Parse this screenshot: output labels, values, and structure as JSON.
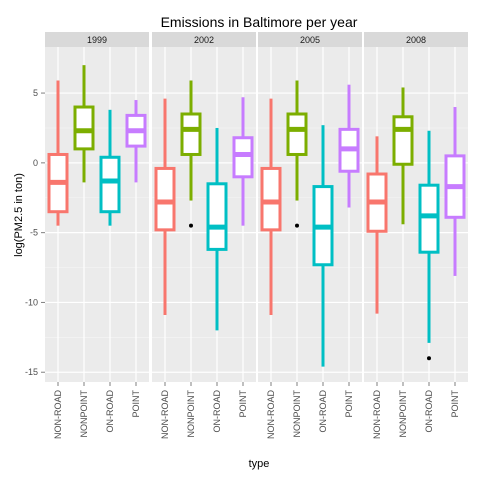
{
  "chart_data": {
    "type": "box",
    "title": "Emissions in Baltimore per year",
    "xlabel": "type",
    "ylabel": "log(PM2.5 in ton)",
    "ylim": [
      -15.7,
      8.3
    ],
    "yticks": [
      -15,
      -10,
      -5,
      0,
      5
    ],
    "categories": [
      "NON-ROAD",
      "NONPOINT",
      "ON-ROAD",
      "POINT"
    ],
    "colors": {
      "NON-ROAD": "#F8766D",
      "NONPOINT": "#7CAE00",
      "ON-ROAD": "#00BFC4",
      "POINT": "#C77CFF"
    },
    "panels": [
      {
        "label": "1999",
        "boxes": [
          {
            "type": "NON-ROAD",
            "min": -4.5,
            "q1": -3.5,
            "median": -1.4,
            "q3": 0.6,
            "max": 5.9,
            "outliers": []
          },
          {
            "type": "NONPOINT",
            "min": -1.4,
            "q1": 1.0,
            "median": 2.3,
            "q3": 4.0,
            "max": 7.0,
            "outliers": []
          },
          {
            "type": "ON-ROAD",
            "min": -4.5,
            "q1": -3.5,
            "median": -1.3,
            "q3": 0.4,
            "max": 3.8,
            "outliers": []
          },
          {
            "type": "POINT",
            "min": -1.4,
            "q1": 1.2,
            "median": 2.3,
            "q3": 3.4,
            "max": 4.5,
            "outliers": []
          }
        ]
      },
      {
        "label": "2002",
        "boxes": [
          {
            "type": "NON-ROAD",
            "min": -10.9,
            "q1": -4.8,
            "median": -2.8,
            "q3": -0.4,
            "max": 4.6,
            "outliers": []
          },
          {
            "type": "NONPOINT",
            "min": -2.7,
            "q1": 0.6,
            "median": 2.4,
            "q3": 3.5,
            "max": 5.9,
            "outliers": [
              -4.5
            ]
          },
          {
            "type": "ON-ROAD",
            "min": -12.0,
            "q1": -6.2,
            "median": -4.6,
            "q3": -1.5,
            "max": 2.5,
            "outliers": []
          },
          {
            "type": "POINT",
            "min": -4.5,
            "q1": -1.0,
            "median": 0.6,
            "q3": 1.8,
            "max": 4.7,
            "outliers": []
          }
        ]
      },
      {
        "label": "2005",
        "boxes": [
          {
            "type": "NON-ROAD",
            "min": -10.9,
            "q1": -4.8,
            "median": -2.8,
            "q3": -0.4,
            "max": 4.6,
            "outliers": []
          },
          {
            "type": "NONPOINT",
            "min": -2.7,
            "q1": 0.6,
            "median": 2.4,
            "q3": 3.5,
            "max": 5.9,
            "outliers": [
              -4.5
            ]
          },
          {
            "type": "ON-ROAD",
            "min": -14.6,
            "q1": -7.3,
            "median": -4.6,
            "q3": -1.7,
            "max": 2.7,
            "outliers": []
          },
          {
            "type": "POINT",
            "min": -3.2,
            "q1": -0.6,
            "median": 1.0,
            "q3": 2.4,
            "max": 5.6,
            "outliers": []
          }
        ]
      },
      {
        "label": "2008",
        "boxes": [
          {
            "type": "NON-ROAD",
            "min": -10.8,
            "q1": -4.9,
            "median": -2.8,
            "q3": -0.8,
            "max": 1.9,
            "outliers": []
          },
          {
            "type": "NONPOINT",
            "min": -4.4,
            "q1": -0.1,
            "median": 2.4,
            "q3": 3.3,
            "max": 5.4,
            "outliers": []
          },
          {
            "type": "ON-ROAD",
            "min": -12.9,
            "q1": -6.4,
            "median": -3.8,
            "q3": -1.6,
            "max": 2.3,
            "outliers": [
              -14.0
            ]
          },
          {
            "type": "POINT",
            "min": -8.1,
            "q1": -3.9,
            "median": -1.7,
            "q3": 0.5,
            "max": 4.0,
            "outliers": []
          }
        ]
      }
    ],
    "grid": true,
    "legend": "none"
  }
}
